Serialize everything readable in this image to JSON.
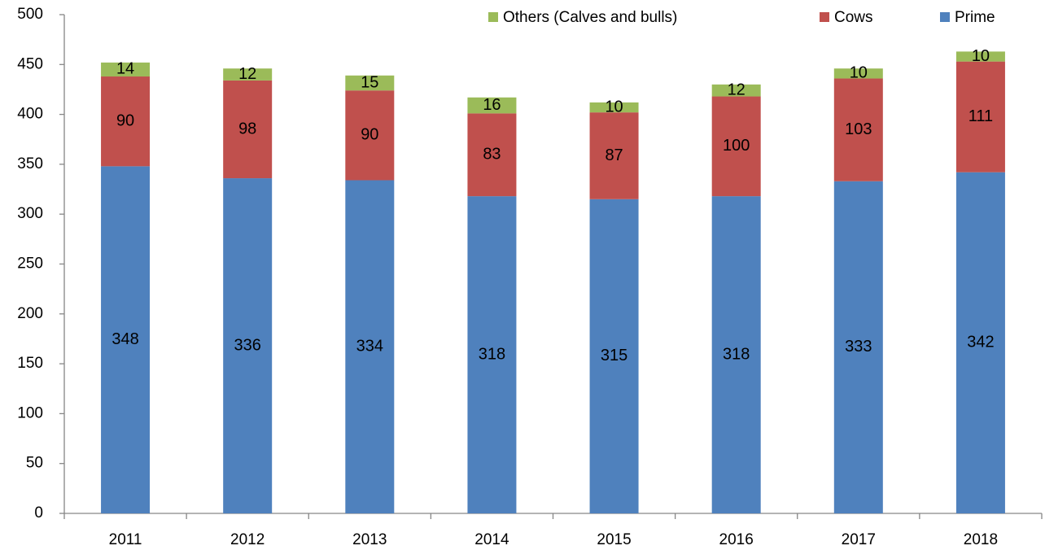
{
  "chart_data": {
    "type": "stacked_bar",
    "categories": [
      "2011",
      "2012",
      "2013",
      "2014",
      "2015",
      "2016",
      "2017",
      "2018"
    ],
    "series": [
      {
        "name": "Prime",
        "color": "#4f81bd",
        "values": [
          348,
          336,
          334,
          318,
          315,
          318,
          333,
          342
        ]
      },
      {
        "name": "Cows",
        "color": "#c0504d",
        "values": [
          90,
          98,
          90,
          83,
          87,
          100,
          103,
          111
        ]
      },
      {
        "name": "Others (Calves and bulls)",
        "color": "#9bbb59",
        "values": [
          14,
          12,
          15,
          16,
          10,
          12,
          10,
          10
        ]
      }
    ],
    "ylim": [
      0,
      500
    ],
    "yticks": [
      0,
      50,
      100,
      150,
      200,
      250,
      300,
      350,
      400,
      450,
      500
    ],
    "grid": false,
    "legend": "top-right"
  }
}
